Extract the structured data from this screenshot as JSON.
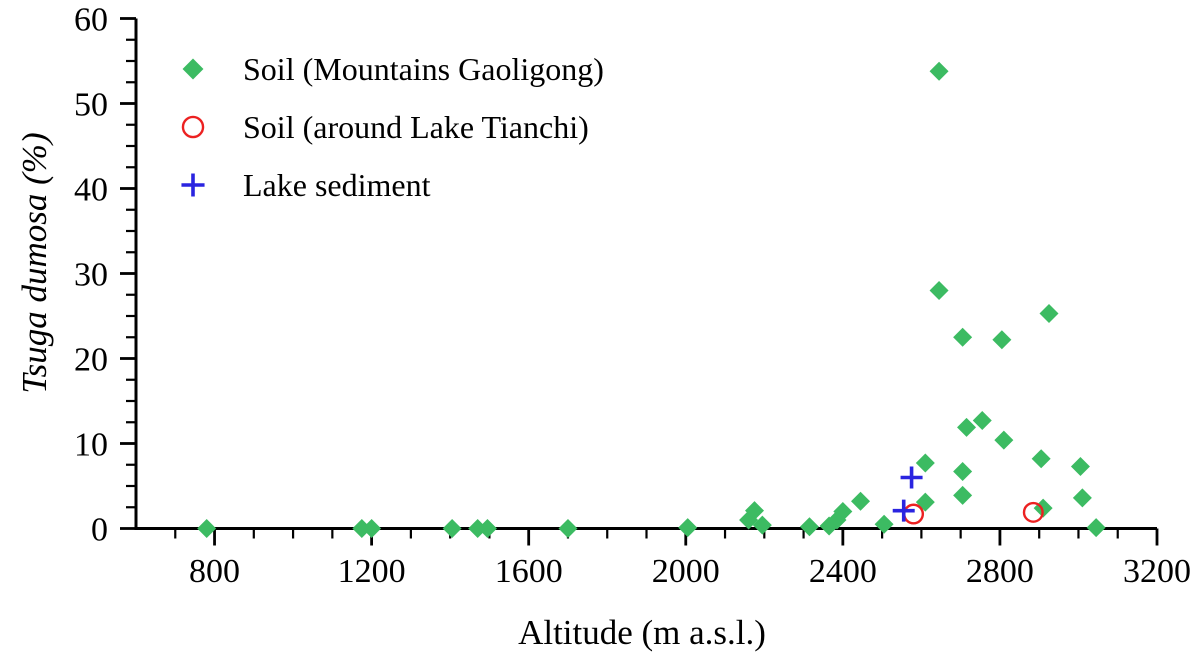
{
  "chart_data": {
    "type": "scatter",
    "title": "",
    "xlabel": "Altitude (m a.s.l.)",
    "ylabel": "Tsuga dumosa (%)",
    "xlim": [
      600,
      3200
    ],
    "ylim": [
      0,
      60
    ],
    "x_major_ticks": [
      800,
      1200,
      1600,
      2000,
      2400,
      2800,
      3200
    ],
    "x_minor_step": 100,
    "y_major_ticks": [
      0,
      10,
      20,
      30,
      40,
      50,
      60
    ],
    "y_minor_step": 2.5,
    "grid": false,
    "legend_position": "top-left",
    "axis_color": "#000000",
    "background_color": "#ffffff",
    "series": [
      {
        "name": "Soil (Mountains Gaoligong)",
        "marker": "diamond",
        "color": "#3cbb62",
        "points": [
          [
            780,
            0
          ],
          [
            1175,
            0
          ],
          [
            1200,
            0
          ],
          [
            1405,
            0
          ],
          [
            1470,
            0
          ],
          [
            1495,
            0
          ],
          [
            1700,
            0
          ],
          [
            2005,
            0.1
          ],
          [
            2160,
            1.0
          ],
          [
            2175,
            2.1
          ],
          [
            2195,
            0.4
          ],
          [
            2315,
            0.2
          ],
          [
            2365,
            0.3
          ],
          [
            2385,
            1.0
          ],
          [
            2400,
            2.0
          ],
          [
            2445,
            3.2
          ],
          [
            2505,
            0.5
          ],
          [
            2610,
            7.7
          ],
          [
            2610,
            3.1
          ],
          [
            2645,
            53.8
          ],
          [
            2645,
            28.0
          ],
          [
            2705,
            22.5
          ],
          [
            2705,
            6.7
          ],
          [
            2705,
            3.9
          ],
          [
            2715,
            11.9
          ],
          [
            2755,
            12.7
          ],
          [
            2805,
            22.2
          ],
          [
            2810,
            10.4
          ],
          [
            2905,
            8.2
          ],
          [
            2910,
            2.4
          ],
          [
            2925,
            25.3
          ],
          [
            3005,
            7.3
          ],
          [
            3010,
            3.6
          ],
          [
            3045,
            0.1
          ]
        ]
      },
      {
        "name": "Soil (around Lake Tianchi)",
        "marker": "open-circle",
        "color": "#ec2121",
        "points": [
          [
            2580,
            1.7
          ],
          [
            2885,
            1.9
          ]
        ]
      },
      {
        "name": "Lake sediment",
        "marker": "plus",
        "color": "#2a24e0",
        "points": [
          [
            2555,
            2.1
          ],
          [
            2575,
            6.0
          ]
        ]
      }
    ]
  }
}
